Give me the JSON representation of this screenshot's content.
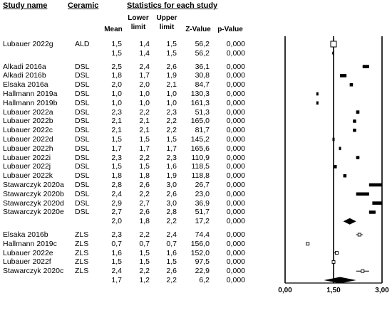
{
  "headers": {
    "study_name": "Study name",
    "ceramic": "Ceramic",
    "stats_title": "Statistics for each study",
    "mean": "Mean",
    "lower_limit": [
      "Lower",
      "limit"
    ],
    "upper_limit": [
      "Upper",
      "limit"
    ],
    "z_value": "Z-Value",
    "p_value": "p-Value"
  },
  "chart_data": {
    "type": "forest",
    "xlim": [
      0.0,
      3.0
    ],
    "axis_ticks": [
      {
        "value": 0.0,
        "label": "0,00"
      },
      {
        "value": 1.5,
        "label": "1,50"
      },
      {
        "value": 3.0,
        "label": "3,00"
      }
    ],
    "rows": [
      {
        "study": "Lubauer 2022g",
        "ceramic": "ALD",
        "mean": "1,5",
        "lower": "1,4",
        "upper": "1,5",
        "z": "56,2",
        "p": "0,000",
        "m": 1.5,
        "lo": 1.4,
        "hi": 1.5,
        "kind": "study",
        "marker": "hollow-large"
      },
      {
        "study": "",
        "ceramic": "",
        "mean": "1,5",
        "lower": "1,4",
        "upper": "1,5",
        "z": "56,2",
        "p": "0,000",
        "m": 1.5,
        "lo": 1.45,
        "hi": 1.5,
        "kind": "subtotal"
      },
      {
        "study": "Alkadi 2016a",
        "ceramic": "DSL",
        "mean": "2,5",
        "lower": "2,4",
        "upper": "2,6",
        "z": "36,1",
        "p": "0,000",
        "m": 2.5,
        "lo": 2.4,
        "hi": 2.6,
        "kind": "study"
      },
      {
        "study": "Alkadi 2016b",
        "ceramic": "DSL",
        "mean": "1,8",
        "lower": "1,7",
        "upper": "1,9",
        "z": "30,8",
        "p": "0,000",
        "m": 1.8,
        "lo": 1.7,
        "hi": 1.9,
        "kind": "study"
      },
      {
        "study": "Elsaka 2016a",
        "ceramic": "DSL",
        "mean": "2,0",
        "lower": "2,0",
        "upper": "2,1",
        "z": "84,7",
        "p": "0,000",
        "m": 2.0,
        "lo": 2.0,
        "hi": 2.1,
        "kind": "study"
      },
      {
        "study": "Hallmann 2019a",
        "ceramic": "DSL",
        "mean": "1,0",
        "lower": "1,0",
        "upper": "1,0",
        "z": "130,3",
        "p": "0,000",
        "m": 1.0,
        "lo": 1.0,
        "hi": 1.0,
        "kind": "study"
      },
      {
        "study": "Hallmann 2019b",
        "ceramic": "DSL",
        "mean": "1,0",
        "lower": "1,0",
        "upper": "1,0",
        "z": "161,3",
        "p": "0,000",
        "m": 1.0,
        "lo": 1.0,
        "hi": 1.0,
        "kind": "study"
      },
      {
        "study": "Lubauer 2022a",
        "ceramic": "DSL",
        "mean": "2,3",
        "lower": "2,2",
        "upper": "2,3",
        "z": "51,3",
        "p": "0,000",
        "m": 2.3,
        "lo": 2.2,
        "hi": 2.3,
        "kind": "study"
      },
      {
        "study": "Lubauer 2022b",
        "ceramic": "DSL",
        "mean": "2,1",
        "lower": "2,1",
        "upper": "2,2",
        "z": "165,0",
        "p": "0,000",
        "m": 2.1,
        "lo": 2.1,
        "hi": 2.2,
        "kind": "study"
      },
      {
        "study": "Lubauer 2022c",
        "ceramic": "DSL",
        "mean": "2,1",
        "lower": "2,1",
        "upper": "2,2",
        "z": "81,7",
        "p": "0,000",
        "m": 2.1,
        "lo": 2.1,
        "hi": 2.2,
        "kind": "study"
      },
      {
        "study": "Lubauer 2022d",
        "ceramic": "DSL",
        "mean": "1,5",
        "lower": "1,5",
        "upper": "1,5",
        "z": "145,2",
        "p": "0,000",
        "m": 1.5,
        "lo": 1.5,
        "hi": 1.5,
        "kind": "study"
      },
      {
        "study": "Lubauer 2022h",
        "ceramic": "DSL",
        "mean": "1,7",
        "lower": "1,7",
        "upper": "1,7",
        "z": "165,6",
        "p": "0,000",
        "m": 1.7,
        "lo": 1.7,
        "hi": 1.7,
        "kind": "study"
      },
      {
        "study": "Lubauer 2022i",
        "ceramic": "DSL",
        "mean": "2,3",
        "lower": "2,2",
        "upper": "2,3",
        "z": "110,9",
        "p": "0,000",
        "m": 2.3,
        "lo": 2.2,
        "hi": 2.3,
        "kind": "study"
      },
      {
        "study": "Lubauer 2022j",
        "ceramic": "DSL",
        "mean": "1,5",
        "lower": "1,5",
        "upper": "1,6",
        "z": "118,5",
        "p": "0,000",
        "m": 1.5,
        "lo": 1.5,
        "hi": 1.6,
        "kind": "study"
      },
      {
        "study": "Lubauer 2022k",
        "ceramic": "DSL",
        "mean": "1,8",
        "lower": "1,8",
        "upper": "1,9",
        "z": "118,8",
        "p": "0,000",
        "m": 1.8,
        "lo": 1.8,
        "hi": 1.9,
        "kind": "study"
      },
      {
        "study": "Stawarczyk 2020a",
        "ceramic": "DSL",
        "mean": "2,8",
        "lower": "2,6",
        "upper": "3,0",
        "z": "26,7",
        "p": "0,000",
        "m": 2.8,
        "lo": 2.6,
        "hi": 3.0,
        "kind": "study"
      },
      {
        "study": "Stawarczyk 2020b",
        "ceramic": "DSL",
        "mean": "2,4",
        "lower": "2,2",
        "upper": "2,6",
        "z": "23,0",
        "p": "0,000",
        "m": 2.4,
        "lo": 2.2,
        "hi": 2.6,
        "kind": "study"
      },
      {
        "study": "Stawarczyk 2020d",
        "ceramic": "DSL",
        "mean": "2,9",
        "lower": "2,7",
        "upper": "3,0",
        "z": "36,9",
        "p": "0,000",
        "m": 2.9,
        "lo": 2.7,
        "hi": 3.0,
        "kind": "study"
      },
      {
        "study": "Stawarczyk 2020e",
        "ceramic": "DSL",
        "mean": "2,7",
        "lower": "2,6",
        "upper": "2,8",
        "z": "51,7",
        "p": "0,000",
        "m": 2.7,
        "lo": 2.6,
        "hi": 2.8,
        "kind": "study"
      },
      {
        "study": "",
        "ceramic": "",
        "mean": "2,0",
        "lower": "1,8",
        "upper": "2,2",
        "z": "17,2",
        "p": "0,000",
        "m": 2.0,
        "lo": 1.8,
        "hi": 2.2,
        "kind": "subtotal"
      },
      {
        "study": "Elsaka 2016b",
        "ceramic": "ZLS",
        "mean": "2,3",
        "lower": "2,2",
        "upper": "2,4",
        "z": "74,4",
        "p": "0,000",
        "m": 2.3,
        "lo": 2.2,
        "hi": 2.4,
        "kind": "study",
        "marker": "hollow"
      },
      {
        "study": "Hallmann 2019c",
        "ceramic": "ZLS",
        "mean": "0,7",
        "lower": "0,7",
        "upper": "0,7",
        "z": "156,0",
        "p": "0,000",
        "m": 0.7,
        "lo": 0.7,
        "hi": 0.7,
        "kind": "study",
        "marker": "hollow"
      },
      {
        "study": "Lubauer 2022e",
        "ceramic": "ZLS",
        "mean": "1,6",
        "lower": "1,5",
        "upper": "1,6",
        "z": "152,0",
        "p": "0,000",
        "m": 1.6,
        "lo": 1.5,
        "hi": 1.6,
        "kind": "study",
        "marker": "hollow"
      },
      {
        "study": "Lubauer 2022f",
        "ceramic": "ZLS",
        "mean": "1,5",
        "lower": "1,5",
        "upper": "1,5",
        "z": "97,5",
        "p": "0,000",
        "m": 1.5,
        "lo": 1.5,
        "hi": 1.5,
        "kind": "study",
        "marker": "hollow"
      },
      {
        "study": "Stawarczyk 2020c",
        "ceramic": "ZLS",
        "mean": "2,4",
        "lower": "2,2",
        "upper": "2,6",
        "z": "22,9",
        "p": "0,000",
        "m": 2.4,
        "lo": 2.2,
        "hi": 2.6,
        "kind": "study",
        "marker": "hollow"
      },
      {
        "study": "",
        "ceramic": "",
        "mean": "1,7",
        "lower": "1,2",
        "upper": "2,2",
        "z": "6,2",
        "p": "0,000",
        "m": 1.7,
        "lo": 1.2,
        "hi": 2.2,
        "kind": "subtotal"
      }
    ]
  }
}
